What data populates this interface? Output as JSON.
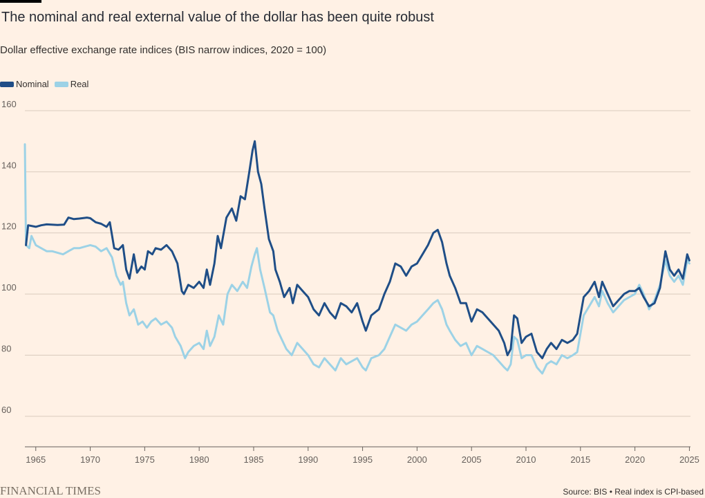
{
  "header": {
    "title": "The nominal and real external value of the dollar has been quite robust",
    "subtitle": "Dollar effective exchange rate indices (BIS narrow indices, 2020 = 100)"
  },
  "footer": {
    "logo": "FINANCIAL TIMES",
    "source": "Source: BIS • Real index is CPI-based"
  },
  "colors": {
    "background": "#fff1e5",
    "nominal": "#1f4e87",
    "real": "#9cd2e6",
    "grid": "#d9cbbd",
    "axis": "#66605c"
  },
  "chart_data": {
    "type": "line",
    "title": "The nominal and real external value of the dollar has been quite robust",
    "subtitle": "Dollar effective exchange rate indices (BIS narrow indices, 2020 = 100)",
    "xlabel": "",
    "ylabel": "",
    "xlim": [
      1964,
      2025.1
    ],
    "ylim": [
      50,
      160
    ],
    "x_ticks": [
      1965,
      1970,
      1975,
      1980,
      1985,
      1990,
      1995,
      2000,
      2005,
      2010,
      2015,
      2020,
      2025
    ],
    "y_ticks": [
      60,
      80,
      100,
      120,
      140,
      160
    ],
    "grid": true,
    "legend_position": "top-left",
    "series": [
      {
        "name": "Nominal",
        "color": "#1f4e87",
        "points": [
          [
            1964.1,
            116
          ],
          [
            1964.3,
            122.5
          ],
          [
            1965,
            122
          ],
          [
            1965.5,
            122.5
          ],
          [
            1966,
            122.8
          ],
          [
            1967,
            122.6
          ],
          [
            1967.6,
            122.7
          ],
          [
            1968,
            125
          ],
          [
            1968.5,
            124.5
          ],
          [
            1969,
            124.7
          ],
          [
            1969.7,
            125
          ],
          [
            1970,
            124.8
          ],
          [
            1970.5,
            123.5
          ],
          [
            1971,
            123
          ],
          [
            1971.5,
            122
          ],
          [
            1971.8,
            123.5
          ],
          [
            1972.2,
            115
          ],
          [
            1972.6,
            114.5
          ],
          [
            1973,
            116
          ],
          [
            1973.3,
            108
          ],
          [
            1973.6,
            105
          ],
          [
            1974,
            113
          ],
          [
            1974.3,
            107
          ],
          [
            1974.7,
            109
          ],
          [
            1975,
            108
          ],
          [
            1975.3,
            114
          ],
          [
            1975.7,
            113
          ],
          [
            1976,
            115
          ],
          [
            1976.5,
            114.5
          ],
          [
            1977,
            116
          ],
          [
            1977.5,
            114
          ],
          [
            1978,
            110
          ],
          [
            1978.4,
            101
          ],
          [
            1978.6,
            100
          ],
          [
            1979,
            103
          ],
          [
            1979.5,
            102
          ],
          [
            1980,
            104
          ],
          [
            1980.4,
            102
          ],
          [
            1980.7,
            108
          ],
          [
            1981,
            103
          ],
          [
            1981.4,
            110
          ],
          [
            1981.7,
            119
          ],
          [
            1982,
            115
          ],
          [
            1982.5,
            125
          ],
          [
            1983,
            128
          ],
          [
            1983.4,
            124
          ],
          [
            1983.8,
            132
          ],
          [
            1984.2,
            131
          ],
          [
            1984.6,
            140
          ],
          [
            1984.9,
            147
          ],
          [
            1985.1,
            150
          ],
          [
            1985.4,
            140
          ],
          [
            1985.7,
            136
          ],
          [
            1986,
            128
          ],
          [
            1986.4,
            118
          ],
          [
            1986.8,
            114
          ],
          [
            1987,
            108
          ],
          [
            1987.4,
            104
          ],
          [
            1987.8,
            99
          ],
          [
            1988.3,
            102
          ],
          [
            1988.6,
            97
          ],
          [
            1989,
            103
          ],
          [
            1989.5,
            101
          ],
          [
            1990,
            99
          ],
          [
            1990.5,
            95
          ],
          [
            1991,
            93
          ],
          [
            1991.5,
            97
          ],
          [
            1992,
            94
          ],
          [
            1992.5,
            92
          ],
          [
            1993,
            97
          ],
          [
            1993.5,
            96
          ],
          [
            1994,
            94
          ],
          [
            1994.5,
            97
          ],
          [
            1995,
            91
          ],
          [
            1995.3,
            88
          ],
          [
            1995.8,
            93
          ],
          [
            1996.5,
            95
          ],
          [
            1997,
            100
          ],
          [
            1997.5,
            104
          ],
          [
            1998,
            110
          ],
          [
            1998.5,
            109
          ],
          [
            1999,
            106
          ],
          [
            1999.5,
            109
          ],
          [
            2000,
            110
          ],
          [
            2000.5,
            113
          ],
          [
            2001,
            116
          ],
          [
            2001.5,
            120
          ],
          [
            2001.9,
            121
          ],
          [
            2002.3,
            117
          ],
          [
            2002.7,
            110
          ],
          [
            2003,
            106
          ],
          [
            2003.5,
            102
          ],
          [
            2004,
            97
          ],
          [
            2004.5,
            97
          ],
          [
            2005,
            91
          ],
          [
            2005.5,
            95
          ],
          [
            2006,
            94
          ],
          [
            2006.5,
            92
          ],
          [
            2007,
            90
          ],
          [
            2007.5,
            88
          ],
          [
            2008,
            84
          ],
          [
            2008.3,
            80
          ],
          [
            2008.6,
            82
          ],
          [
            2008.9,
            93
          ],
          [
            2009.2,
            92
          ],
          [
            2009.6,
            84
          ],
          [
            2010,
            86
          ],
          [
            2010.5,
            87
          ],
          [
            2011,
            81
          ],
          [
            2011.5,
            79
          ],
          [
            2011.9,
            82
          ],
          [
            2012.3,
            84
          ],
          [
            2012.8,
            82
          ],
          [
            2013.3,
            85
          ],
          [
            2013.8,
            84
          ],
          [
            2014.3,
            85
          ],
          [
            2014.7,
            87
          ],
          [
            2015,
            93
          ],
          [
            2015.3,
            99
          ],
          [
            2015.8,
            101
          ],
          [
            2016.3,
            104
          ],
          [
            2016.7,
            99
          ],
          [
            2017,
            104
          ],
          [
            2017.5,
            100
          ],
          [
            2018,
            96
          ],
          [
            2018.5,
            98
          ],
          [
            2019,
            100
          ],
          [
            2019.5,
            101
          ],
          [
            2020,
            101
          ],
          [
            2020.4,
            102
          ],
          [
            2020.8,
            99
          ],
          [
            2021.3,
            96
          ],
          [
            2021.8,
            97
          ],
          [
            2022.3,
            102
          ],
          [
            2022.8,
            114
          ],
          [
            2023.2,
            108
          ],
          [
            2023.6,
            106
          ],
          [
            2024,
            108
          ],
          [
            2024.4,
            105
          ],
          [
            2024.8,
            113
          ],
          [
            2025,
            111
          ]
        ]
      },
      {
        "name": "Real",
        "color": "#9cd2e6",
        "points": [
          [
            1964.0,
            149
          ],
          [
            1964.1,
            116
          ],
          [
            1964.4,
            115
          ],
          [
            1964.6,
            119
          ],
          [
            1965,
            116
          ],
          [
            1965.5,
            115
          ],
          [
            1966,
            114
          ],
          [
            1966.5,
            114
          ],
          [
            1967,
            113.5
          ],
          [
            1967.5,
            113
          ],
          [
            1968,
            114
          ],
          [
            1968.5,
            115
          ],
          [
            1969,
            115
          ],
          [
            1969.5,
            115.5
          ],
          [
            1970,
            116
          ],
          [
            1970.5,
            115.5
          ],
          [
            1971,
            114
          ],
          [
            1971.5,
            115
          ],
          [
            1972,
            112
          ],
          [
            1972.4,
            106
          ],
          [
            1972.8,
            103
          ],
          [
            1973,
            104
          ],
          [
            1973.3,
            97
          ],
          [
            1973.6,
            93
          ],
          [
            1974,
            95
          ],
          [
            1974.4,
            90
          ],
          [
            1974.8,
            91
          ],
          [
            1975.2,
            89
          ],
          [
            1975.6,
            91
          ],
          [
            1976,
            92
          ],
          [
            1976.5,
            90
          ],
          [
            1977,
            91
          ],
          [
            1977.5,
            89
          ],
          [
            1977.8,
            86
          ],
          [
            1978.3,
            83
          ],
          [
            1978.7,
            79
          ],
          [
            1979,
            81
          ],
          [
            1979.5,
            83
          ],
          [
            1980,
            84
          ],
          [
            1980.4,
            82
          ],
          [
            1980.7,
            88
          ],
          [
            1981,
            83
          ],
          [
            1981.4,
            86
          ],
          [
            1981.8,
            93
          ],
          [
            1982.2,
            90
          ],
          [
            1982.6,
            100
          ],
          [
            1983,
            103
          ],
          [
            1983.5,
            101
          ],
          [
            1984,
            104
          ],
          [
            1984.4,
            102
          ],
          [
            1984.8,
            109
          ],
          [
            1985.1,
            113
          ],
          [
            1985.3,
            115
          ],
          [
            1985.6,
            108
          ],
          [
            1986,
            102
          ],
          [
            1986.5,
            94
          ],
          [
            1986.8,
            93
          ],
          [
            1987.2,
            88
          ],
          [
            1987.6,
            85
          ],
          [
            1988,
            82
          ],
          [
            1988.5,
            80
          ],
          [
            1989,
            84
          ],
          [
            1989.5,
            82
          ],
          [
            1990,
            80
          ],
          [
            1990.5,
            77
          ],
          [
            1991,
            76
          ],
          [
            1991.5,
            79
          ],
          [
            1992,
            77
          ],
          [
            1992.5,
            75
          ],
          [
            1993,
            79
          ],
          [
            1993.5,
            77
          ],
          [
            1994,
            78
          ],
          [
            1994.5,
            79
          ],
          [
            1995,
            76
          ],
          [
            1995.3,
            75
          ],
          [
            1995.8,
            79
          ],
          [
            1996.5,
            80
          ],
          [
            1997,
            82
          ],
          [
            1997.5,
            86
          ],
          [
            1998,
            90
          ],
          [
            1998.5,
            89
          ],
          [
            1999,
            88
          ],
          [
            1999.5,
            90
          ],
          [
            2000,
            91
          ],
          [
            2000.5,
            93
          ],
          [
            2001,
            95
          ],
          [
            2001.5,
            97
          ],
          [
            2001.9,
            98
          ],
          [
            2002.3,
            95
          ],
          [
            2002.7,
            90
          ],
          [
            2003,
            88
          ],
          [
            2003.5,
            85
          ],
          [
            2004,
            83
          ],
          [
            2004.5,
            84
          ],
          [
            2005,
            80
          ],
          [
            2005.5,
            83
          ],
          [
            2006,
            82
          ],
          [
            2006.5,
            81
          ],
          [
            2007,
            80
          ],
          [
            2007.5,
            78
          ],
          [
            2008,
            76
          ],
          [
            2008.3,
            75
          ],
          [
            2008.6,
            77
          ],
          [
            2008.9,
            86
          ],
          [
            2009.2,
            85
          ],
          [
            2009.6,
            79
          ],
          [
            2010,
            80
          ],
          [
            2010.5,
            80
          ],
          [
            2011,
            76
          ],
          [
            2011.5,
            74
          ],
          [
            2011.9,
            77
          ],
          [
            2012.3,
            78
          ],
          [
            2012.8,
            77
          ],
          [
            2013.3,
            80
          ],
          [
            2013.8,
            79
          ],
          [
            2014.3,
            80
          ],
          [
            2014.7,
            81
          ],
          [
            2015,
            87
          ],
          [
            2015.3,
            93
          ],
          [
            2015.8,
            96
          ],
          [
            2016.3,
            99
          ],
          [
            2016.7,
            96
          ],
          [
            2017,
            101
          ],
          [
            2017.5,
            97
          ],
          [
            2018,
            94
          ],
          [
            2018.5,
            96
          ],
          [
            2019,
            98
          ],
          [
            2019.5,
            99
          ],
          [
            2020,
            100
          ],
          [
            2020.4,
            103
          ],
          [
            2020.8,
            100
          ],
          [
            2021.3,
            95
          ],
          [
            2021.8,
            98
          ],
          [
            2022.3,
            103
          ],
          [
            2022.8,
            111
          ],
          [
            2023.2,
            106
          ],
          [
            2023.6,
            104
          ],
          [
            2024,
            106
          ],
          [
            2024.4,
            103
          ],
          [
            2024.8,
            111
          ],
          [
            2025,
            110
          ]
        ]
      }
    ]
  }
}
